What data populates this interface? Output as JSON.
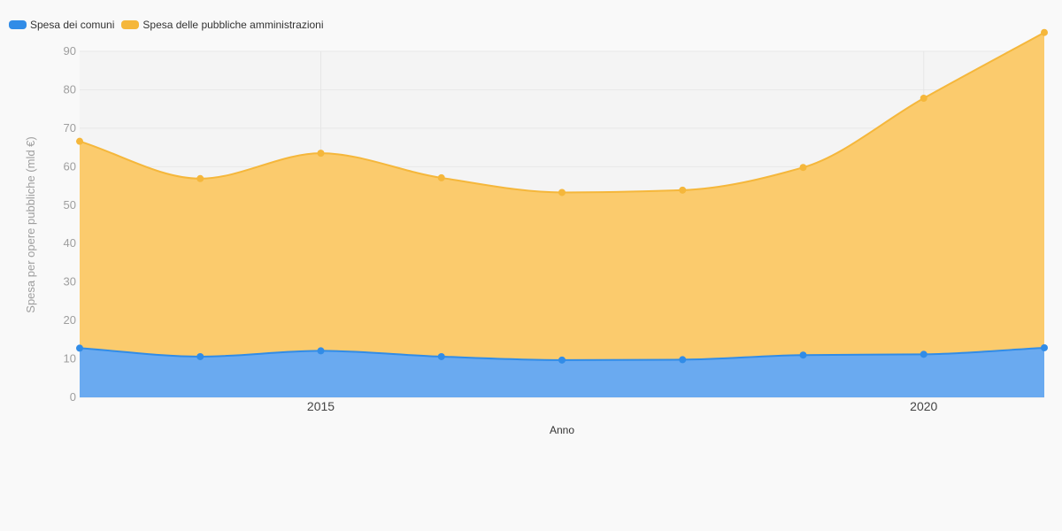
{
  "chart_data": {
    "type": "area",
    "stacked": true,
    "x": [
      2013,
      2014,
      2015,
      2016,
      2017,
      2018,
      2019,
      2020,
      2021
    ],
    "series": [
      {
        "name": "Spesa dei comuni",
        "color": "#318ce7",
        "fill": "#6aaaf0",
        "values": [
          12.8,
          10.6,
          12.1,
          10.6,
          9.7,
          9.8,
          11.0,
          11.2,
          12.9
        ]
      },
      {
        "name": "Spesa delle pubbliche amministrazioni",
        "color": "#f5b73b",
        "fill": "#fbcb6d",
        "values": [
          53.8,
          46.3,
          51.4,
          46.5,
          43.6,
          44.1,
          48.8,
          66.6,
          82.0
        ]
      }
    ],
    "xlabel": "Anno",
    "ylabel": "Spesa per opere pubbliche (mld €)",
    "ylim": [
      0,
      90
    ],
    "yticks": [
      0,
      10,
      20,
      30,
      40,
      50,
      60,
      70,
      80,
      90
    ],
    "xticks": [
      2015,
      2020
    ],
    "legend_position": "top-left",
    "grid": true
  }
}
